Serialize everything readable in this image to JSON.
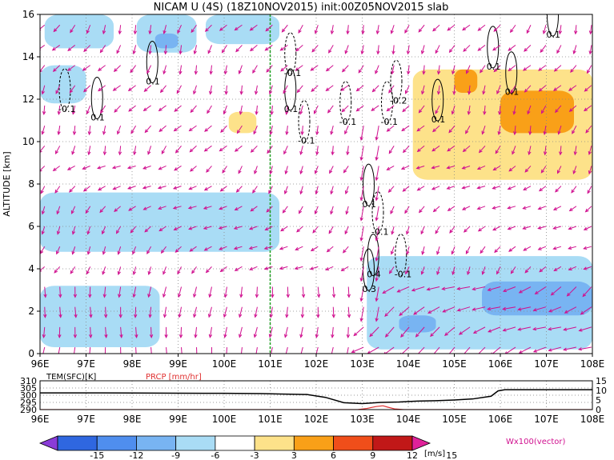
{
  "chart_data": [
    {
      "type": "heatmap",
      "title": "NICAM U (4S) (18Z10NOV2015) init:00Z05NOV2015 slab",
      "xlabel": "",
      "ylabel": "ALTITUDE [km]",
      "xlim": [
        96,
        108
      ],
      "ylim": [
        0,
        16
      ],
      "x_ticks": [
        "96E",
        "97E",
        "98E",
        "99E",
        "100E",
        "101E",
        "102E",
        "103E",
        "104E",
        "105E",
        "106E",
        "107E",
        "108E"
      ],
      "y_ticks": [
        "0",
        "2",
        "4",
        "6",
        "8",
        "10",
        "12",
        "14",
        "16"
      ],
      "grid": true,
      "reference_line_lon": 101,
      "shaded_regions": [
        {
          "band": "-6 to -3",
          "color": "#a9dcf5",
          "lon": [
            96.1,
            97.6
          ],
          "alt": [
            14.4,
            16.0
          ]
        },
        {
          "band": "-6 to -3",
          "color": "#a9dcf5",
          "lon": [
            99.6,
            101.2
          ],
          "alt": [
            14.6,
            16.0
          ]
        },
        {
          "band": "-6 to -3",
          "color": "#a9dcf5",
          "lon": [
            96.0,
            97.0
          ],
          "alt": [
            11.8,
            13.6
          ]
        },
        {
          "band": "-6 to -3",
          "color": "#a9dcf5",
          "lon": [
            98.1,
            99.4
          ],
          "alt": [
            14.2,
            16.0
          ]
        },
        {
          "band": "-6 to -3",
          "color": "#a9dcf5",
          "lon": [
            96.0,
            101.2
          ],
          "alt": [
            4.8,
            7.6
          ]
        },
        {
          "band": "-6 to -3",
          "color": "#a9dcf5",
          "lon": [
            96.0,
            98.6
          ],
          "alt": [
            0.3,
            3.2
          ]
        },
        {
          "band": "-6 to -3",
          "color": "#a9dcf5",
          "lon": [
            103.1,
            108.0
          ],
          "alt": [
            0.2,
            4.6
          ]
        },
        {
          "band": "-9 to -6",
          "color": "#78b4f2",
          "lon": [
            105.6,
            108.0
          ],
          "alt": [
            1.8,
            3.4
          ]
        },
        {
          "band": "-9 to -6",
          "color": "#78b4f2",
          "lon": [
            103.8,
            104.6
          ],
          "alt": [
            1.0,
            1.8
          ]
        },
        {
          "band": "-9 to -6",
          "color": "#78b4f2",
          "lon": [
            98.5,
            99.0
          ],
          "alt": [
            14.4,
            15.1
          ]
        },
        {
          "band": "3 to 6",
          "color": "#fde28a",
          "lon": [
            104.1,
            108.0
          ],
          "alt": [
            8.2,
            13.4
          ]
        },
        {
          "band": "3 to 6",
          "color": "#fde28a",
          "lon": [
            100.1,
            100.7
          ],
          "alt": [
            10.4,
            11.4
          ]
        },
        {
          "band": "6 to 9",
          "color": "#f9a018",
          "lon": [
            105.0,
            105.5
          ],
          "alt": [
            12.3,
            13.4
          ]
        },
        {
          "band": "6 to 9",
          "color": "#f9a018",
          "lon": [
            106.0,
            107.6
          ],
          "alt": [
            10.4,
            12.4
          ]
        }
      ],
      "contour_labels": [
        {
          "text": "-0.1",
          "lon": 96.4,
          "alt": 11.4
        },
        {
          "text": "0.1",
          "lon": 97.1,
          "alt": 11.0
        },
        {
          "text": "0.1",
          "lon": 98.3,
          "alt": 12.7
        },
        {
          "text": "-0.1",
          "lon": 101.3,
          "alt": 13.1
        },
        {
          "text": "0.1",
          "lon": 101.3,
          "alt": 11.4
        },
        {
          "text": "-0.1",
          "lon": 102.5,
          "alt": 10.8
        },
        {
          "text": "-0.1",
          "lon": 101.6,
          "alt": 9.9
        },
        {
          "text": "-0.2",
          "lon": 103.6,
          "alt": 11.8
        },
        {
          "text": "-0.1",
          "lon": 103.4,
          "alt": 10.8
        },
        {
          "text": "0.1",
          "lon": 104.5,
          "alt": 10.9
        },
        {
          "text": "0.1",
          "lon": 105.7,
          "alt": 13.4
        },
        {
          "text": "0.1",
          "lon": 106.1,
          "alt": 12.2
        },
        {
          "text": "0.1",
          "lon": 107.0,
          "alt": 14.9
        },
        {
          "text": "0.1",
          "lon": 103.0,
          "alt": 6.9
        },
        {
          "text": "-0.1",
          "lon": 103.2,
          "alt": 5.6
        },
        {
          "text": "0.4",
          "lon": 103.1,
          "alt": 3.6
        },
        {
          "text": "-0.1",
          "lon": 103.7,
          "alt": 3.6
        },
        {
          "text": "0.3",
          "lon": 103.0,
          "alt": 2.9
        }
      ],
      "wind_vector_label": "Wx100(vector)",
      "colorbar": {
        "unit": "[m/s]",
        "ticks": [
          "-15",
          "-12",
          "-9",
          "-6",
          "-3",
          "3",
          "6",
          "9",
          "12",
          "15"
        ],
        "colors": [
          "#8a3cd8",
          "#2f67e0",
          "#4f8eee",
          "#78b4f2",
          "#a9dcf5",
          "#ffffff",
          "#fde28a",
          "#f9a018",
          "#f04e1a",
          "#c11818",
          "#e0229a"
        ]
      }
    },
    {
      "type": "line",
      "xlim": [
        96,
        108
      ],
      "series": [
        {
          "name": "TEM(SFC)[K]",
          "color": "#000000",
          "x": [
            96.0,
            97.0,
            98.0,
            99.0,
            100.0,
            100.8,
            101.2,
            101.8,
            102.2,
            102.6,
            103.0,
            103.4,
            103.8,
            104.2,
            104.6,
            105.0,
            105.4,
            105.8,
            105.95,
            106.1,
            108.0
          ],
          "y": [
            301.6,
            301.6,
            301.5,
            301.4,
            301.3,
            301.1,
            300.8,
            300.5,
            298.5,
            294.8,
            294.2,
            295.0,
            295.3,
            295.9,
            296.2,
            296.7,
            297.4,
            299.3,
            303.0,
            303.8,
            303.8
          ],
          "ylim": [
            290,
            310
          ],
          "ticks": [
            "310",
            "305",
            "300",
            "295",
            "290"
          ]
        },
        {
          "name": "PRCP [mm/hr]",
          "color": "#e03030",
          "x": [
            96.0,
            102.9,
            103.1,
            103.3,
            103.45,
            103.55,
            103.7,
            103.9,
            108.0
          ],
          "y": [
            0,
            0,
            0.6,
            1.6,
            2.0,
            1.3,
            0.4,
            0,
            0
          ],
          "ylim": [
            0,
            15
          ],
          "ticks": [
            "15",
            "10",
            "5",
            "0"
          ]
        }
      ]
    }
  ]
}
